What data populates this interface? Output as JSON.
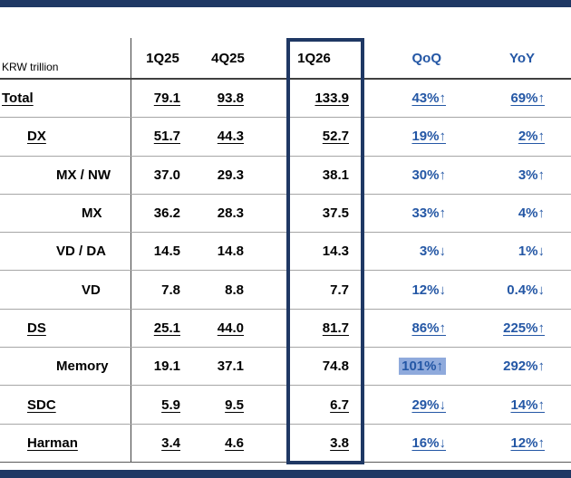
{
  "table": {
    "unit_label": "KRW trillion",
    "columns": [
      "1Q25",
      "4Q25",
      "1Q26",
      "QoQ",
      "YoY"
    ],
    "highlighted_column": "1Q26",
    "rows": [
      {
        "label": "Total",
        "indent": 0,
        "underline": true,
        "values": [
          "79.1",
          "93.8",
          "133.9"
        ],
        "qoq": "43%↑",
        "yoy": "69%↑"
      },
      {
        "label": "DX",
        "indent": 1,
        "underline": true,
        "values": [
          "51.7",
          "44.3",
          "52.7"
        ],
        "qoq": "19%↑",
        "yoy": "2%↑"
      },
      {
        "label": "MX / NW",
        "indent": 2,
        "underline": false,
        "values": [
          "37.0",
          "29.3",
          "38.1"
        ],
        "qoq": "30%↑",
        "yoy": "3%↑"
      },
      {
        "label": "MX",
        "indent": 3,
        "underline": false,
        "values": [
          "36.2",
          "28.3",
          "37.5"
        ],
        "qoq": "33%↑",
        "yoy": "4%↑"
      },
      {
        "label": "VD / DA",
        "indent": 2,
        "underline": false,
        "values": [
          "14.5",
          "14.8",
          "14.3"
        ],
        "qoq": "3%↓",
        "yoy": "1%↓"
      },
      {
        "label": "VD",
        "indent": 3,
        "underline": false,
        "values": [
          "7.8",
          "8.8",
          "7.7"
        ],
        "qoq": "12%↓",
        "yoy": "0.4%↓"
      },
      {
        "label": "DS",
        "indent": 1,
        "underline": true,
        "values": [
          "25.1",
          "44.0",
          "81.7"
        ],
        "qoq": "86%↑",
        "yoy": "225%↑"
      },
      {
        "label": "Memory",
        "indent": 2,
        "underline": false,
        "values": [
          "19.1",
          "37.1",
          "74.8"
        ],
        "qoq": "101%↑",
        "qoq_highlight": true,
        "yoy": "292%↑"
      },
      {
        "label": "SDC",
        "indent": 1,
        "underline": true,
        "values": [
          "5.9",
          "9.5",
          "6.7"
        ],
        "qoq": "29%↓",
        "yoy": "14%↑"
      },
      {
        "label": "Harman",
        "indent": 1,
        "underline": true,
        "values": [
          "3.4",
          "4.6",
          "3.8"
        ],
        "qoq": "16%↓",
        "yoy": "12%↑"
      }
    ]
  },
  "colors": {
    "accent_navy": "#1F3864",
    "blue_text": "#2457A5",
    "qoq_highlight_bg": "#8FAADC"
  },
  "chart_data": {
    "type": "table",
    "title": "Quarterly results by division (KRW trillion)",
    "unit": "KRW trillion",
    "columns": [
      "1Q25",
      "4Q25",
      "1Q26",
      "QoQ",
      "YoY"
    ],
    "rows": [
      [
        "Total",
        79.1,
        93.8,
        133.9,
        "43%↑",
        "69%↑"
      ],
      [
        "DX",
        51.7,
        44.3,
        52.7,
        "19%↑",
        "2%↑"
      ],
      [
        "MX / NW",
        37.0,
        29.3,
        38.1,
        "30%↑",
        "3%↑"
      ],
      [
        "MX",
        36.2,
        28.3,
        37.5,
        "33%↑",
        "4%↑"
      ],
      [
        "VD / DA",
        14.5,
        14.8,
        14.3,
        "3%↓",
        "1%↓"
      ],
      [
        "VD",
        7.8,
        8.8,
        7.7,
        "12%↓",
        "0.4%↓"
      ],
      [
        "DS",
        25.1,
        44.0,
        81.7,
        "86%↑",
        "225%↑"
      ],
      [
        "Memory",
        19.1,
        37.1,
        74.8,
        "101%↑",
        "292%↑"
      ],
      [
        "SDC",
        5.9,
        9.5,
        6.7,
        "29%↓",
        "14%↑"
      ],
      [
        "Harman",
        3.4,
        4.6,
        3.8,
        "16%↓",
        "12%↑"
      ]
    ]
  }
}
